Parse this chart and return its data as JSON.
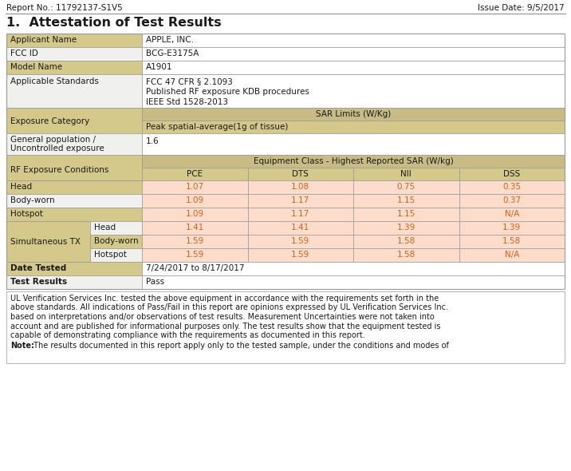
{
  "report_no": "Report No.: 11792137-S1V5",
  "issue_date": "Issue Date: 9/5/2017",
  "section_title": "1.  Attestation of Test Results",
  "applicant_name": "APPLE, INC.",
  "fcc_id": "BCG-E3175A",
  "model_name": "A1901",
  "applicable_standards": [
    "FCC 47 CFR § 2.1093",
    "Published RF exposure KDB procedures",
    "IEEE Std 1528-2013"
  ],
  "sar_limits_header": "SAR Limits (W/Kg)",
  "peak_spatial": "Peak spatial-average(1g of tissue)",
  "general_population_value": "1.6",
  "equipment_class_header": "Equipment Class - Highest Reported SAR (W/kg)",
  "col_headers": [
    "PCE",
    "DTS",
    "NII",
    "DSS"
  ],
  "rows": [
    {
      "label": "Head",
      "sub": "",
      "values": [
        "1.07",
        "1.08",
        "0.75",
        "0.35"
      ],
      "val_bg": [
        "#FDDCCC",
        "#FDDCCC",
        "#FDDCCC",
        "#FDDCCC"
      ]
    },
    {
      "label": "Body-worn",
      "sub": "",
      "values": [
        "1.09",
        "1.17",
        "1.15",
        "0.37"
      ],
      "val_bg": [
        "#FDDCCC",
        "#FDDCCC",
        "#FDDCCC",
        "#FDDCCC"
      ]
    },
    {
      "label": "Hotspot",
      "sub": "",
      "values": [
        "1.09",
        "1.17",
        "1.15",
        "N/A"
      ],
      "val_bg": [
        "#FDDCCC",
        "#FDDCCC",
        "#FDDCCC",
        "#FDDCCC"
      ]
    },
    {
      "label": "Simultaneous TX",
      "sub": "Head",
      "values": [
        "1.41",
        "1.41",
        "1.39",
        "1.39"
      ],
      "val_bg": [
        "#FDDCCC",
        "#FDDCCC",
        "#FDDCCC",
        "#FDDCCC"
      ]
    },
    {
      "label": "",
      "sub": "Body-worn",
      "values": [
        "1.59",
        "1.59",
        "1.58",
        "1.58"
      ],
      "val_bg": [
        "#FDDCCC",
        "#FDDCCC",
        "#FDDCCC",
        "#FDDCCC"
      ]
    },
    {
      "label": "",
      "sub": "Hotspot",
      "values": [
        "1.59",
        "1.59",
        "1.58",
        "N/A"
      ],
      "val_bg": [
        "#FDDCCC",
        "#FDDCCC",
        "#FDDCCC",
        "#FDDCCC"
      ]
    }
  ],
  "date_tested_label": "Date Tested",
  "date_tested_value": "7/24/2017 to 8/17/2017",
  "test_results_label": "Test Results",
  "test_results_value": "Pass",
  "footer_lines": [
    "UL Verification Services Inc. tested the above equipment in accordance with the requirements set forth in the",
    "above standards. All indications of Pass/Fail in this report are opinions expressed by UL Verification Services Inc.",
    "based on interpretations and/or observations of test results. Measurement Uncertainties were not taken into",
    "account and are published for informational purposes only. The test results show that the equipment tested is",
    "capable of demonstrating compliance with the requirements as documented in this report."
  ],
  "note_bold": "Note:",
  "note_rest": " The results documented in this report apply only to the tested sample, under the conditions and modes of",
  "color_tan_dark": "#B8AC78",
  "color_tan_light": "#D4C98A",
  "color_tan_mid": "#C8BC84",
  "color_white": "#FFFFFF",
  "color_light_gray": "#F0F0EE",
  "color_orange": "#D4621A",
  "color_val_bg": "#FDDCCC",
  "color_border": "#999999",
  "color_text": "#1A1A1A",
  "fig_w": 7.16,
  "fig_h": 5.9,
  "dpi": 100
}
